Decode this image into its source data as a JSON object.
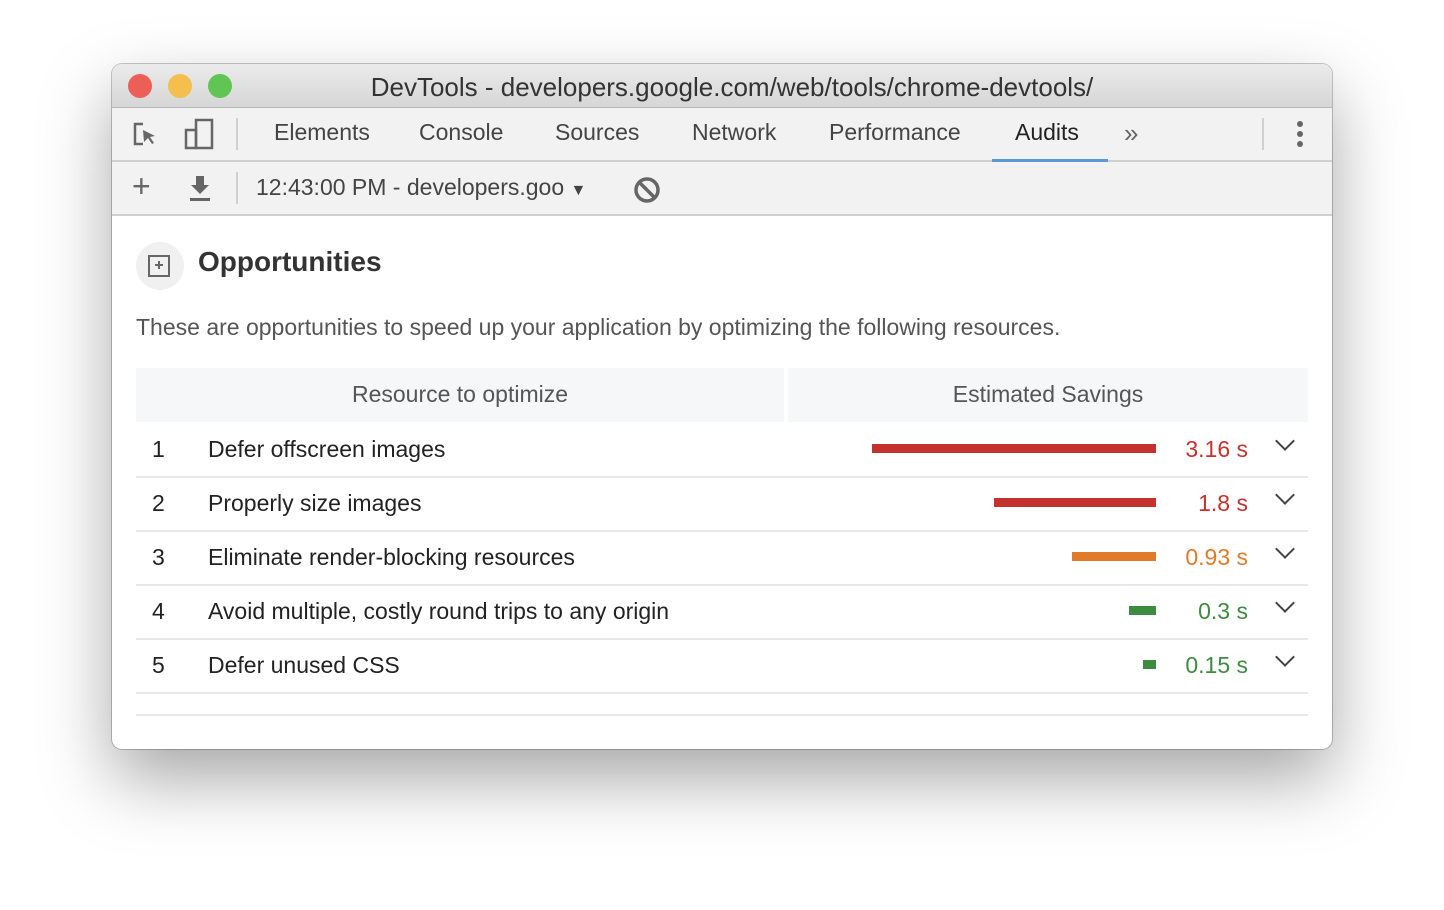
{
  "window": {
    "title": "DevTools - developers.google.com/web/tools/chrome-devtools/"
  },
  "tabs": [
    {
      "label": "Elements"
    },
    {
      "label": "Console"
    },
    {
      "label": "Sources"
    },
    {
      "label": "Network"
    },
    {
      "label": "Performance"
    },
    {
      "label": "Audits",
      "active": true
    }
  ],
  "toolbar": {
    "report_select": "12:43:00 PM - developers.goo"
  },
  "section": {
    "title": "Opportunities",
    "description": "These are opportunities to speed up your application by optimizing the following resources."
  },
  "table": {
    "headers": [
      "Resource to optimize",
      "Estimated Savings"
    ],
    "rows": [
      {
        "num": "1",
        "label": "Defer offscreen images",
        "savings": "3.16 s",
        "seconds": 3.16,
        "color": "#c5322d"
      },
      {
        "num": "2",
        "label": "Properly size images",
        "savings": "1.8 s",
        "seconds": 1.8,
        "color": "#c5322d"
      },
      {
        "num": "3",
        "label": "Eliminate render-blocking resources",
        "savings": "0.93 s",
        "seconds": 0.93,
        "color": "#e07b2a"
      },
      {
        "num": "4",
        "label": "Avoid multiple, costly round trips to any origin",
        "savings": "0.3 s",
        "seconds": 0.3,
        "color": "#3d8b40"
      },
      {
        "num": "5",
        "label": "Defer unused CSS",
        "savings": "0.15 s",
        "seconds": 0.15,
        "color": "#3d8b40"
      }
    ]
  },
  "colors": {
    "accent": "#5b9bd5"
  }
}
